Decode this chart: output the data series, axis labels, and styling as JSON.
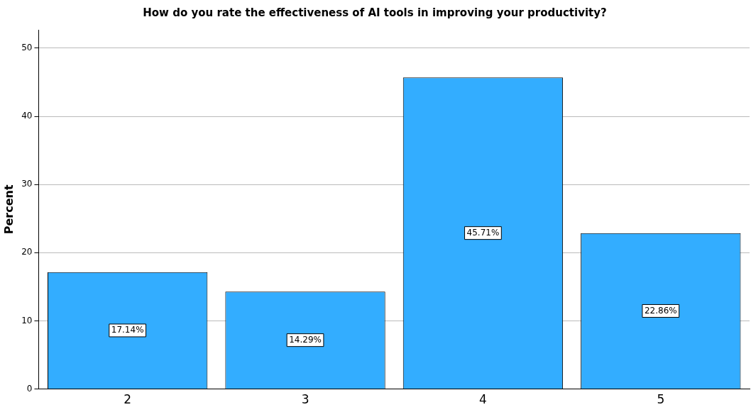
{
  "chart_data": {
    "type": "bar",
    "title": "How do you rate the effectiveness of AI tools in improving your productivity?",
    "ylabel": "Percent",
    "categories": [
      "2",
      "3",
      "4",
      "5"
    ],
    "values": [
      17.14,
      14.29,
      45.71,
      22.86
    ],
    "value_labels": [
      "17.14%",
      "14.29%",
      "45.71%",
      "22.86%"
    ],
    "color": "#33adff",
    "ylim": [
      0,
      52.7
    ],
    "yticks": [
      0,
      10,
      20,
      30,
      40,
      50
    ],
    "grid": "y",
    "legend": false
  }
}
